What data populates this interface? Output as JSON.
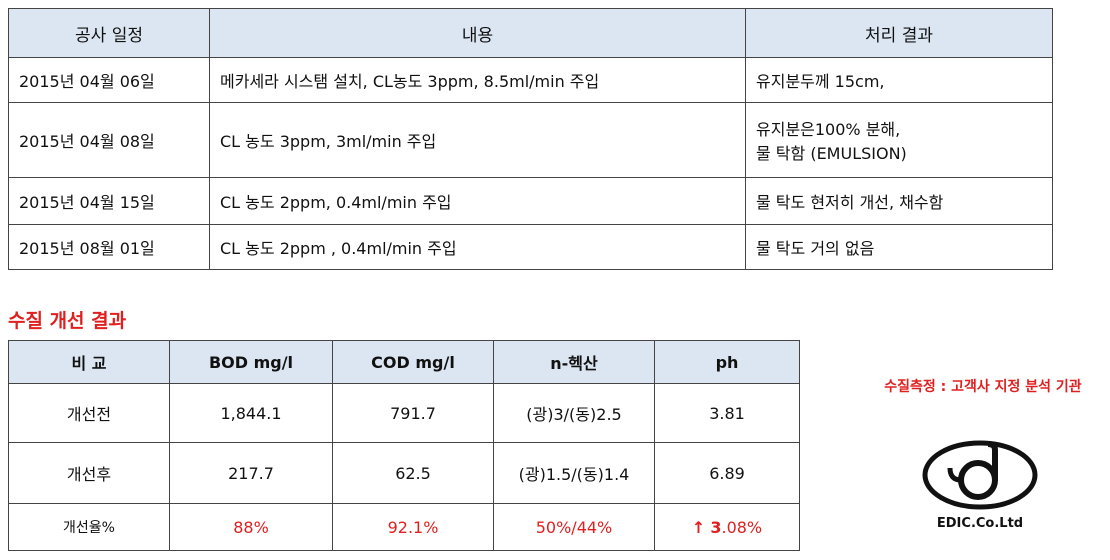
{
  "schedule": {
    "headers": [
      "공사 일정",
      "내용",
      "처리 결과"
    ],
    "rows": [
      {
        "date": "2015년 04월 06일",
        "content": "메카세라 시스탬 설치, CL농도 3ppm, 8.5ml/min 주입",
        "result": [
          "유지분두께 15cm,"
        ]
      },
      {
        "date": "2015년 04월 08일",
        "content": "CL 농도 3ppm, 3ml/min 주입",
        "result": [
          "유지분은100% 분해,",
          "물 탁함 (EMULSION)"
        ]
      },
      {
        "date": "2015년 04월 15일",
        "content": "CL 농도 2ppm, 0.4ml/min 주입",
        "result": [
          "물 탁도 현저히 개선, 채수함"
        ]
      },
      {
        "date": "2015년 08월 01일",
        "content": "CL 농도 2ppm , 0.4ml/min 주입",
        "result": [
          "물 탁도 거의 없음"
        ]
      }
    ]
  },
  "section_title": "수질 개선 결과",
  "results": {
    "headers": [
      "비 교",
      "BOD mg/l",
      "COD mg/l",
      "n-헥산",
      "ph"
    ],
    "rows": [
      {
        "label": "개선전",
        "bod": "1,844.1",
        "cod": "791.7",
        "hexane": "(광)3/(동)2.5",
        "ph": "3.81"
      },
      {
        "label": "개선후",
        "bod": "217.7",
        "cod": "62.5",
        "hexane": "(광)1.5/(동)1.4",
        "ph": "6.89"
      }
    ],
    "rate_row": {
      "label": "개선율%",
      "bod": "88%",
      "cod": "92.1%",
      "hexane": "50%/44%",
      "ph_arrow": "↑",
      "ph_int": "3",
      "ph_rest": ".08%"
    },
    "accent_color": "#e02020"
  },
  "agency_note": "수질측정 : 고객사  지정  분석 기관",
  "logo": {
    "text": "EDIC.Co.Ltd"
  }
}
